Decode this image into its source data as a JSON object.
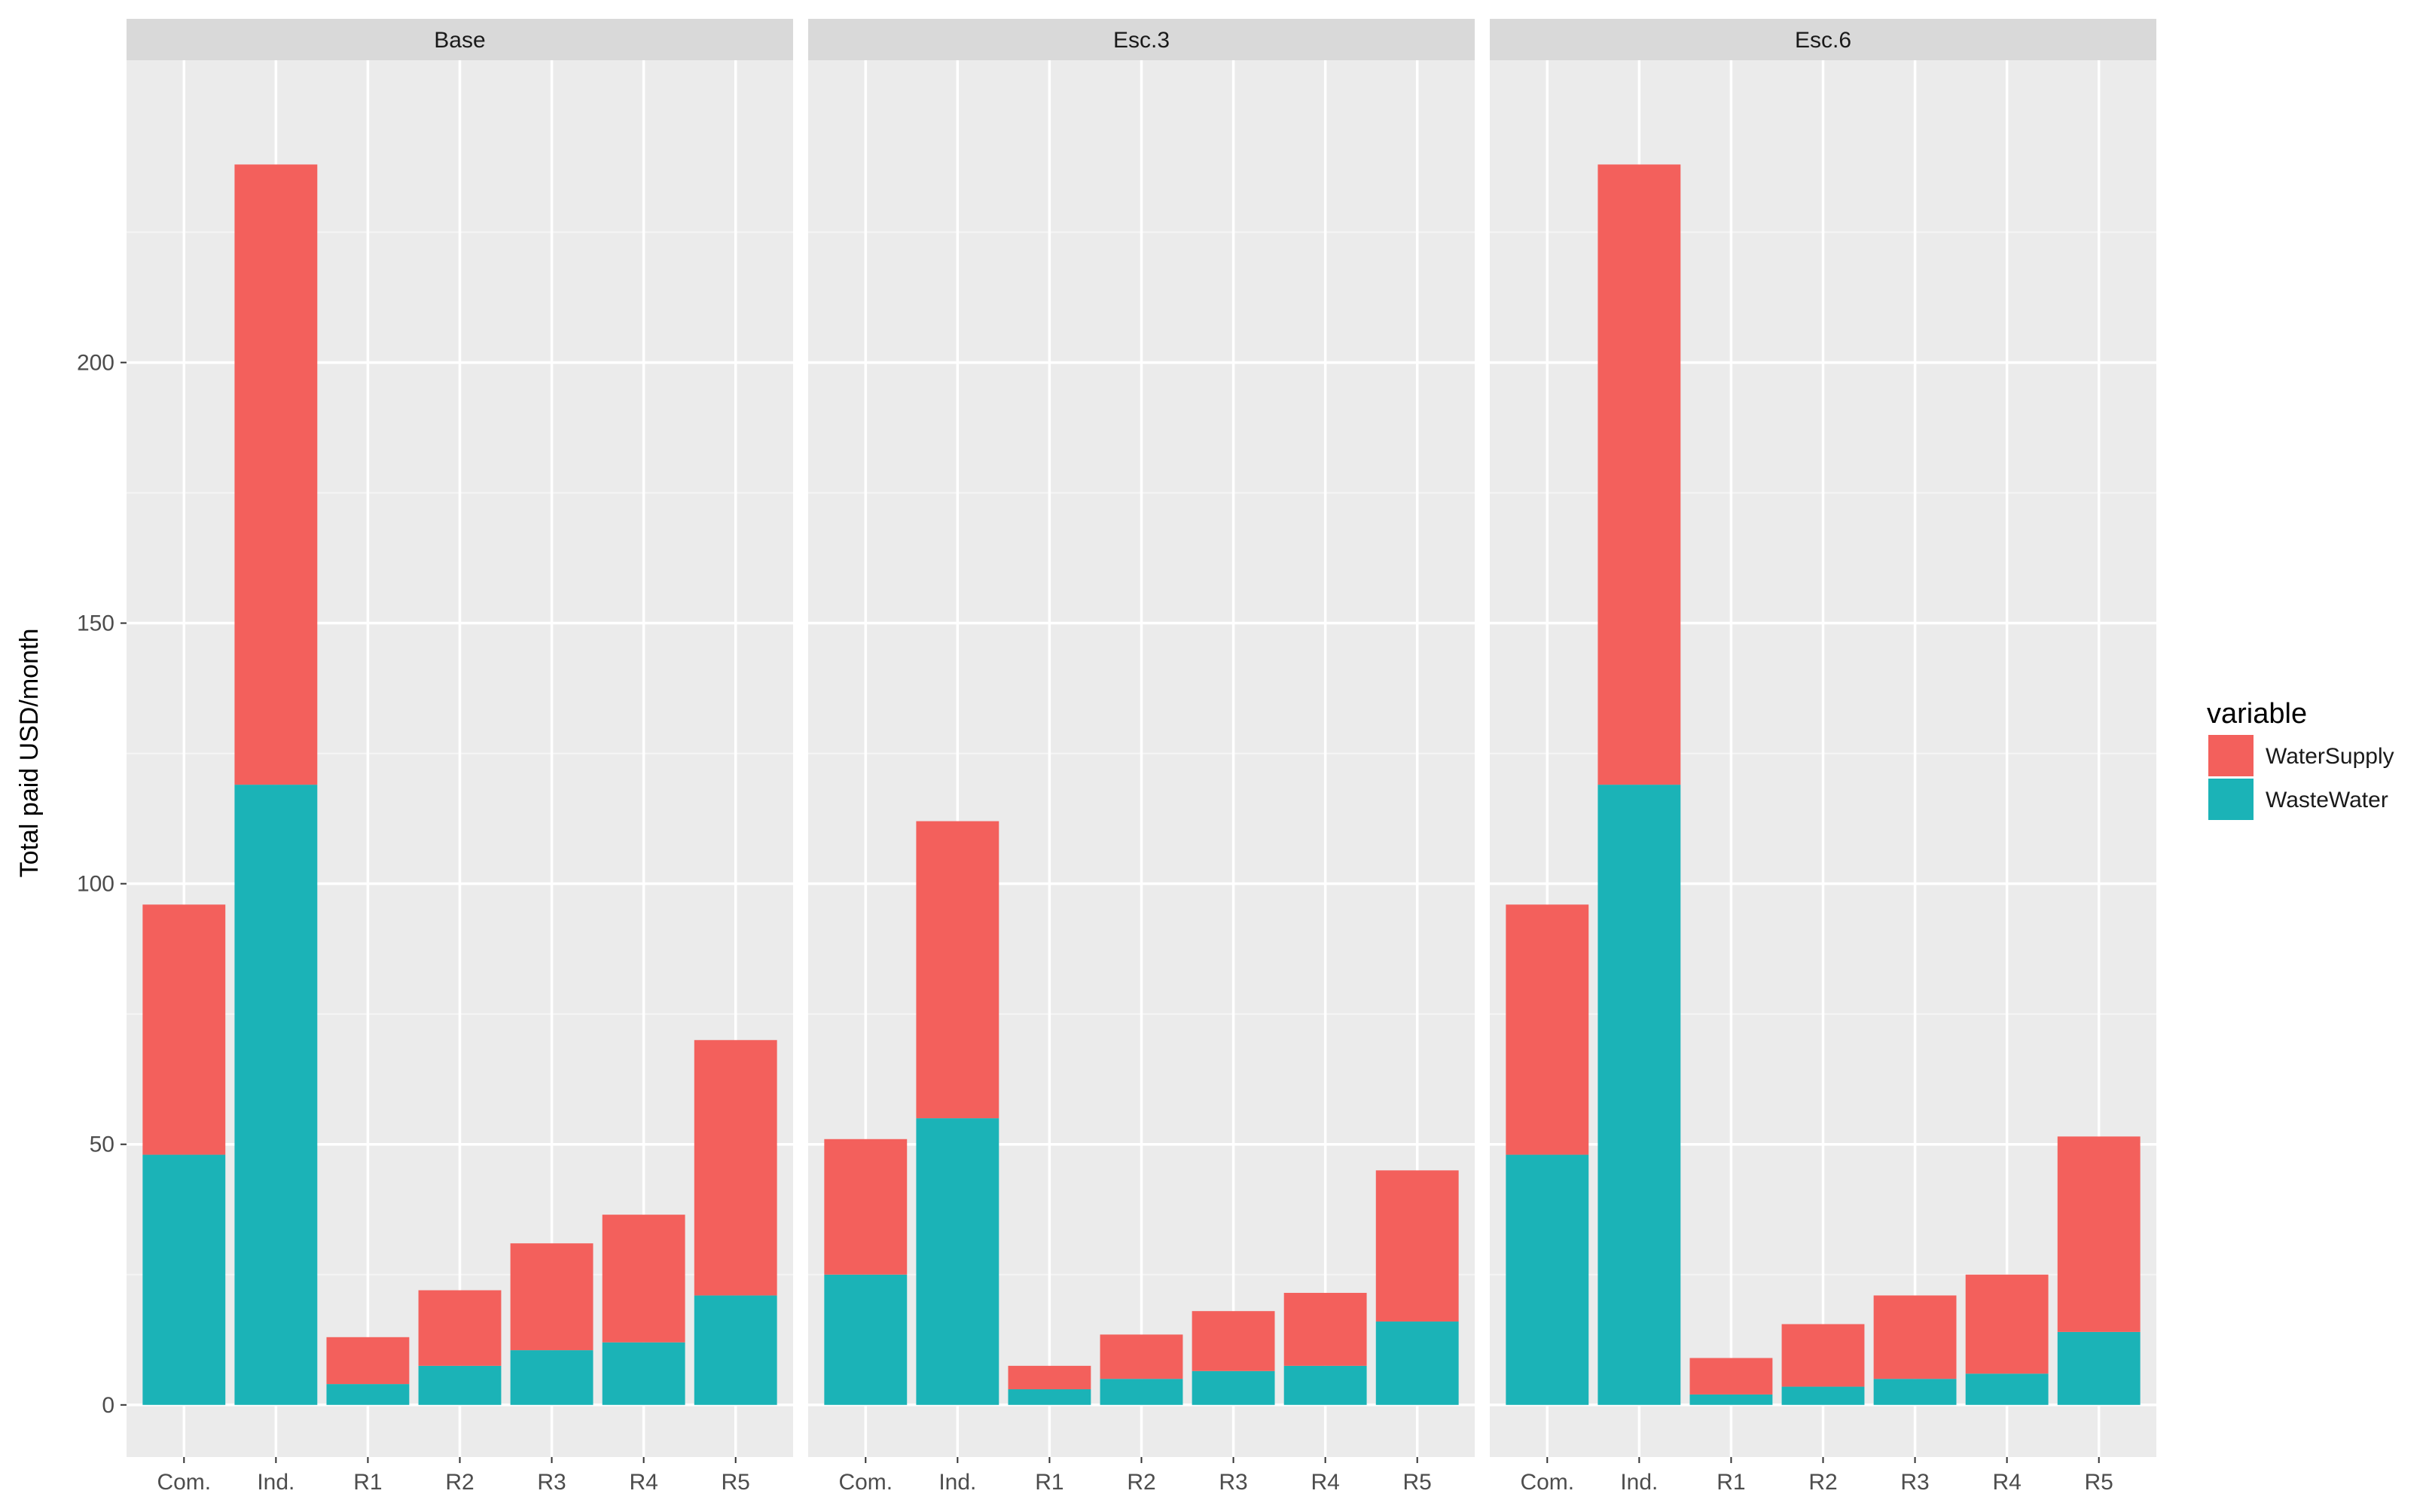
{
  "chart_data": {
    "type": "bar",
    "stacked": true,
    "facets": [
      "Base",
      "Esc.3",
      "Esc.6"
    ],
    "categories": [
      "Com.",
      "Ind.",
      "R1",
      "R2",
      "R3",
      "R4",
      "R5"
    ],
    "ylabel": "Total paid USD/month",
    "xlabel": "",
    "ylim": [
      0,
      250
    ],
    "yticks": [
      0,
      50,
      100,
      150,
      200
    ],
    "legend": {
      "title": "variable",
      "position": "right",
      "entries": [
        "WaterSupply",
        "WasteWater"
      ]
    },
    "colors": {
      "WaterSupply": "#F3605C",
      "WasteWater": "#1BB3B7"
    },
    "series": [
      {
        "name": "WasteWater",
        "values": {
          "Base": [
            48,
            119,
            4,
            7.5,
            10.5,
            12,
            21
          ],
          "Esc.3": [
            25,
            55,
            3,
            5,
            6.5,
            7.5,
            16
          ],
          "Esc.6": [
            48,
            119,
            2,
            3.5,
            5,
            6,
            14
          ]
        }
      },
      {
        "name": "WaterSupply",
        "values": {
          "Base": [
            48,
            119,
            9,
            14.5,
            20.5,
            24.5,
            49
          ],
          "Esc.3": [
            26,
            57,
            4.5,
            8.5,
            11.5,
            14,
            29
          ],
          "Esc.6": [
            48,
            119,
            7,
            12,
            16,
            19,
            37.5
          ]
        }
      }
    ]
  }
}
